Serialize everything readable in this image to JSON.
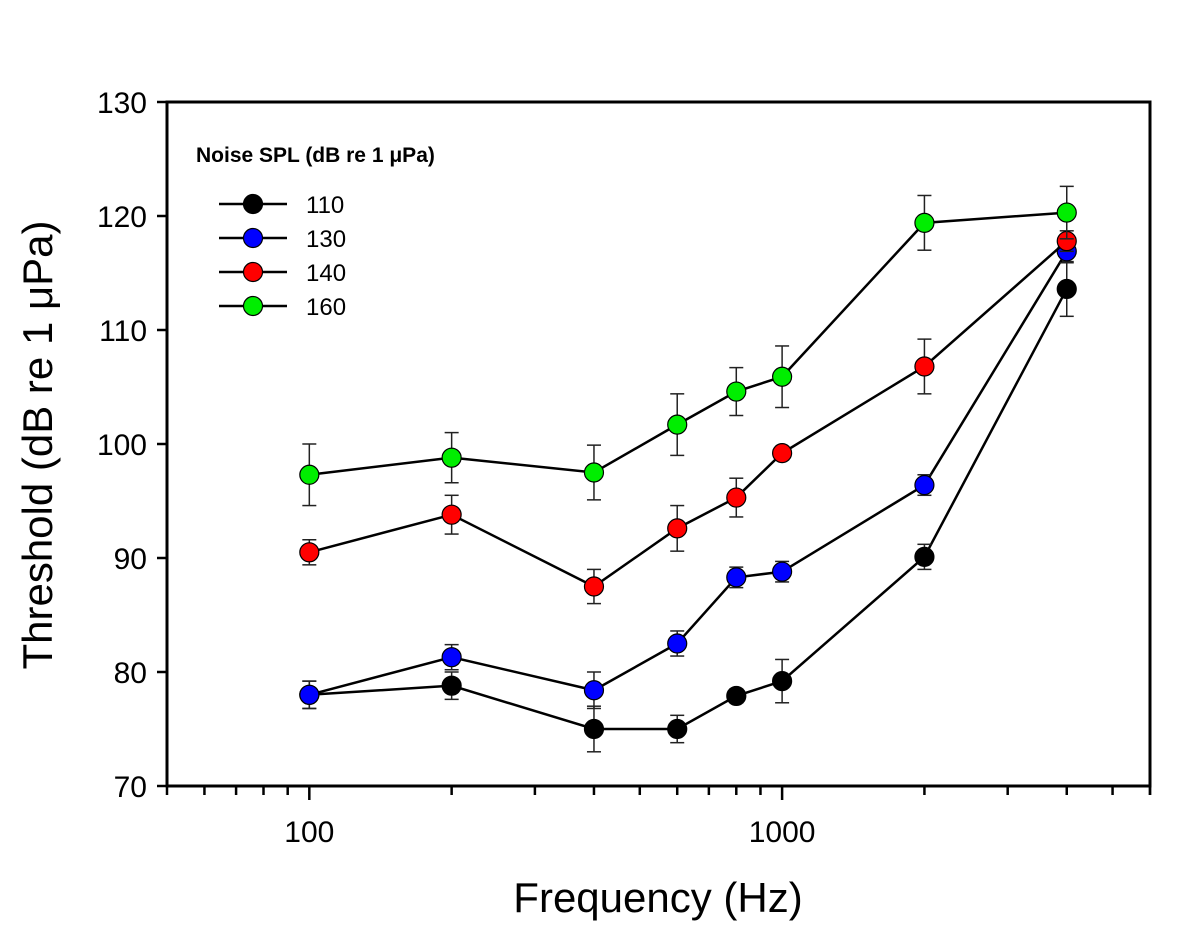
{
  "chart_data": {
    "type": "line",
    "title": "",
    "xlabel": "Frequency (Hz)",
    "ylabel": "Threshold (dB re 1 μPa)",
    "xscale": "log",
    "xlim": [
      50,
      6000
    ],
    "ylim": [
      70,
      130
    ],
    "xticks": [
      100,
      1000
    ],
    "xtick_labels": [
      "100",
      "1000"
    ],
    "yticks": [
      70,
      80,
      90,
      100,
      110,
      120,
      130
    ],
    "ytick_labels": [
      "70",
      "80",
      "90",
      "100",
      "110",
      "120",
      "130"
    ],
    "grid": false,
    "legend": {
      "title": "Noise SPL (dB re 1 μPa)",
      "placement": "top-left"
    },
    "x": [
      100,
      200,
      400,
      600,
      800,
      1000,
      2000,
      4000
    ],
    "series": [
      {
        "name": "110",
        "color": "#000000",
        "values": [
          78.0,
          78.8,
          75.0,
          75.0,
          77.9,
          79.2,
          90.1,
          113.6
        ],
        "errors": [
          1.2,
          1.2,
          2.0,
          1.2,
          0.6,
          1.9,
          1.1,
          2.4
        ]
      },
      {
        "name": "130",
        "color": "#0000ff",
        "values": [
          78.0,
          81.3,
          78.4,
          82.5,
          88.3,
          88.8,
          96.4,
          116.9
        ],
        "errors": [
          1.2,
          1.1,
          1.6,
          1.1,
          0.9,
          0.9,
          0.9,
          1.0
        ]
      },
      {
        "name": "140",
        "color": "#ff0000",
        "values": [
          90.5,
          93.8,
          87.5,
          92.6,
          95.3,
          99.2,
          106.8,
          117.8
        ],
        "errors": [
          1.1,
          1.7,
          1.5,
          2.0,
          1.7,
          0.6,
          2.4,
          0.9
        ]
      },
      {
        "name": "160",
        "color": "#00ee00",
        "values": [
          97.3,
          98.8,
          97.5,
          101.7,
          104.6,
          105.9,
          119.4,
          120.3
        ],
        "errors": [
          2.7,
          2.2,
          2.4,
          2.7,
          2.1,
          2.7,
          2.4,
          2.3
        ]
      }
    ]
  }
}
